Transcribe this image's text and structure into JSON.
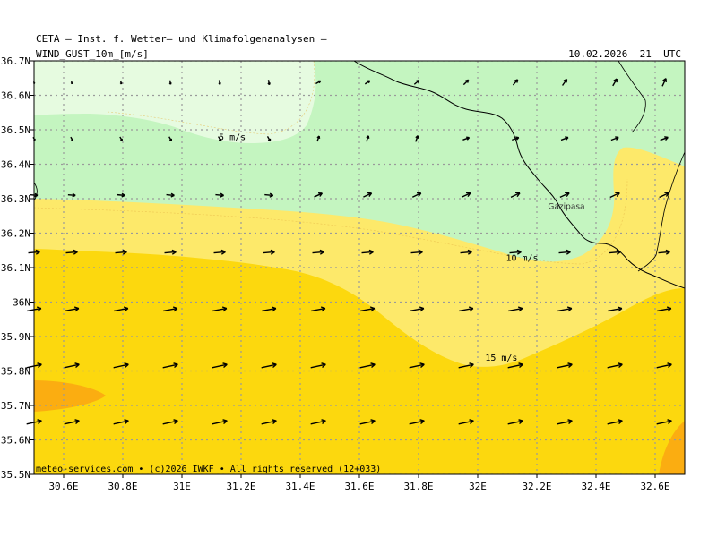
{
  "header": {
    "title": "CETA — Inst. f. Wetter— und Klimafolgenanalysen —",
    "variable": "WIND_GUST_10m_[m/s]",
    "datetime": "10.02.2026  21  UTC"
  },
  "footer": {
    "credit": "meteo-services.com • (c)2026 IWKF • All rights reserved (12+033)"
  },
  "map": {
    "lon_range": [
      30.5,
      32.7
    ],
    "lat_range": [
      35.5,
      36.7
    ],
    "lon_ticks": [
      "30.6E",
      "30.8E",
      "31E",
      "31.2E",
      "31.4E",
      "31.6E",
      "31.8E",
      "32E",
      "32.2E",
      "32.4E",
      "32.6E"
    ],
    "lat_ticks": [
      "36.7N",
      "36.6N",
      "36.5N",
      "36.4N",
      "36.3N",
      "36.2N",
      "36.1N",
      "36N",
      "35.9N",
      "35.8N",
      "35.7N",
      "35.6N",
      "35.5N"
    ],
    "contour_labels": [
      {
        "text": "5 m/s",
        "lon": 31.17,
        "lat": 36.47
      },
      {
        "text": "10 m/s",
        "lon": 32.15,
        "lat": 36.12
      },
      {
        "text": "15 m/s",
        "lon": 32.08,
        "lat": 35.83
      }
    ],
    "places": [
      {
        "name": "Gazipasa",
        "lon": 32.3,
        "lat": 36.27
      }
    ],
    "colors": {
      "band_0_5": "#e6fbe0",
      "band_5_10": "#c4f5c0",
      "band_10_15": "#fde96a",
      "band_15_20": "#fcd80e",
      "band_20_25": "#fbad11",
      "grid": "#9a9a9a",
      "coast": "#000000"
    }
  }
}
